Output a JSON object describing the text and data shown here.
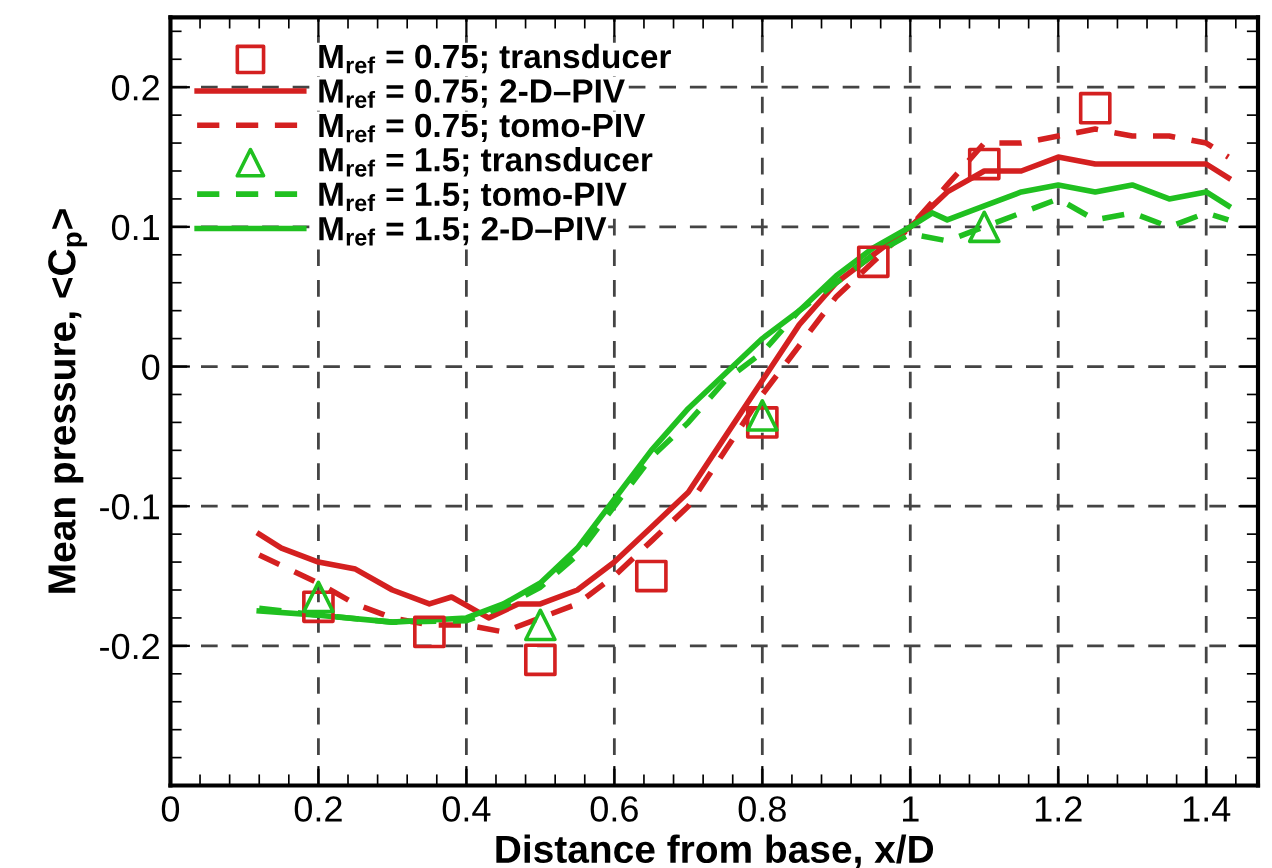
{
  "chart_data": {
    "type": "line",
    "xlabel": "Distance from base, x/D",
    "ylabel": "Mean pressure, <C$_{p}$>",
    "xlim": [
      0,
      1.47
    ],
    "ylim": [
      -0.3,
      0.25
    ],
    "xticks": [
      0,
      0.2,
      0.4,
      0.6,
      0.8,
      1,
      1.2,
      1.4
    ],
    "yticks": [
      -0.2,
      -0.1,
      0,
      0.1,
      0.2
    ],
    "grid": true,
    "legend": "top left",
    "series": [
      {
        "name": "M$_{ref}$ = 0.75; transducer",
        "type": "scatter",
        "marker": "square",
        "color": "#d42020",
        "x": [
          0.2,
          0.35,
          0.5,
          0.65,
          0.8,
          0.95,
          1.1,
          1.25
        ],
        "values": [
          -0.172,
          -0.19,
          -0.21,
          -0.15,
          -0.04,
          0.075,
          0.145,
          0.185
        ]
      },
      {
        "name": "M$_{ref}$ = 0.75; 2-D–PIV",
        "line_style": "solid",
        "color": "#d42020",
        "x": [
          0.12,
          0.15,
          0.2,
          0.25,
          0.3,
          0.35,
          0.38,
          0.43,
          0.47,
          0.5,
          0.55,
          0.6,
          0.65,
          0.7,
          0.75,
          0.8,
          0.85,
          0.9,
          0.95,
          1.0,
          1.05,
          1.1,
          1.15,
          1.2,
          1.25,
          1.3,
          1.35,
          1.4,
          1.43
        ],
        "values": [
          -0.12,
          -0.13,
          -0.14,
          -0.145,
          -0.16,
          -0.17,
          -0.165,
          -0.18,
          -0.17,
          -0.17,
          -0.16,
          -0.14,
          -0.115,
          -0.09,
          -0.05,
          -0.01,
          0.03,
          0.06,
          0.08,
          0.1,
          0.125,
          0.14,
          0.14,
          0.15,
          0.145,
          0.145,
          0.145,
          0.145,
          0.135
        ]
      },
      {
        "name": "M$_{ref}$ = 0.75; tomo-PIV",
        "line_style": "dashed",
        "color": "#d42020",
        "x": [
          0.12,
          0.2,
          0.25,
          0.3,
          0.35,
          0.4,
          0.45,
          0.5,
          0.55,
          0.6,
          0.65,
          0.7,
          0.75,
          0.8,
          0.9,
          0.95,
          1.0,
          1.05,
          1.1,
          1.15,
          1.2,
          1.25,
          1.3,
          1.35,
          1.4,
          1.43
        ],
        "values": [
          -0.135,
          -0.155,
          -0.17,
          -0.18,
          -0.185,
          -0.185,
          -0.19,
          -0.18,
          -0.17,
          -0.15,
          -0.125,
          -0.1,
          -0.06,
          -0.02,
          0.05,
          0.075,
          0.1,
          0.13,
          0.16,
          0.16,
          0.165,
          0.17,
          0.165,
          0.165,
          0.16,
          0.15
        ]
      },
      {
        "name": "M$_{ref}$ = 1.5; transducer",
        "type": "scatter",
        "marker": "triangle",
        "color": "#20c020",
        "x": [
          0.2,
          0.5,
          0.8,
          1.1
        ],
        "values": [
          -0.165,
          -0.185,
          -0.035,
          0.1
        ]
      },
      {
        "name": "M$_{ref}$ = 1.5; tomo-PIV",
        "line_style": "dashed",
        "color": "#20c020",
        "x": [
          0.12,
          0.2,
          0.3,
          0.4,
          0.45,
          0.5,
          0.55,
          0.6,
          0.65,
          0.7,
          0.75,
          0.8,
          0.85,
          0.9,
          0.95,
          1.0,
          1.05,
          1.1,
          1.15,
          1.2,
          1.25,
          1.3,
          1.35,
          1.4,
          1.43
        ],
        "values": [
          -0.173,
          -0.178,
          -0.183,
          -0.182,
          -0.172,
          -0.158,
          -0.135,
          -0.1,
          -0.065,
          -0.04,
          -0.01,
          0.01,
          0.04,
          0.06,
          0.08,
          0.095,
          0.09,
          0.1,
          0.11,
          0.12,
          0.105,
          0.11,
          0.1,
          0.11,
          0.105
        ]
      },
      {
        "name": "M$_{ref}$ = 1.5; 2-D–PIV",
        "line_style": "solid",
        "color": "#20c020",
        "x": [
          0.12,
          0.2,
          0.3,
          0.4,
          0.45,
          0.5,
          0.55,
          0.6,
          0.65,
          0.7,
          0.75,
          0.8,
          0.85,
          0.9,
          0.95,
          1.0,
          1.03,
          1.05,
          1.1,
          1.15,
          1.2,
          1.25,
          1.3,
          1.35,
          1.4,
          1.43
        ],
        "values": [
          -0.175,
          -0.178,
          -0.183,
          -0.18,
          -0.17,
          -0.155,
          -0.13,
          -0.095,
          -0.06,
          -0.03,
          -0.005,
          0.02,
          0.04,
          0.065,
          0.085,
          0.1,
          0.11,
          0.105,
          0.115,
          0.125,
          0.13,
          0.125,
          0.13,
          0.12,
          0.125,
          0.115
        ]
      }
    ]
  }
}
